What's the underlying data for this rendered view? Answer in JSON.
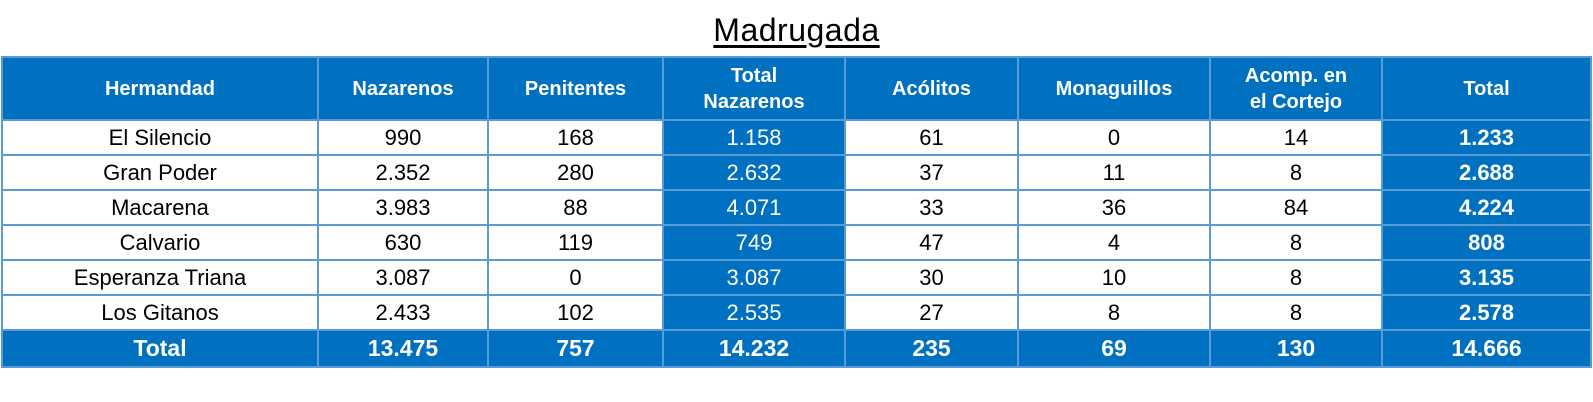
{
  "title": "Madrugada",
  "colors": {
    "fill_blue": "#0070C0",
    "grid_blue": "#5B9BD5",
    "text_on_blue": "#FFFFFF",
    "body_text": "#000000"
  },
  "chart_data": {
    "type": "table",
    "title": "Madrugada",
    "columns": [
      {
        "id": "hermandad",
        "label": "Hermandad"
      },
      {
        "id": "nazarenos",
        "label": "Nazarenos"
      },
      {
        "id": "penitentes",
        "label": "Penitentes"
      },
      {
        "id": "total-nazarenos",
        "label": "Total\nNazarenos"
      },
      {
        "id": "acolitos",
        "label": "Acólitos"
      },
      {
        "id": "monaguillos",
        "label": "Monaguillos"
      },
      {
        "id": "acomp-cortejo",
        "label": "Acomp. en\nel Cortejo"
      },
      {
        "id": "total",
        "label": "Total"
      }
    ],
    "rows": [
      {
        "cells": [
          "El Silencio",
          "990",
          "168",
          "1.158",
          "61",
          "0",
          "14",
          "1.233"
        ]
      },
      {
        "cells": [
          "Gran Poder",
          "2.352",
          "280",
          "2.632",
          "37",
          "11",
          "8",
          "2.688"
        ]
      },
      {
        "cells": [
          "Macarena",
          "3.983",
          "88",
          "4.071",
          "33",
          "36",
          "84",
          "4.224"
        ]
      },
      {
        "cells": [
          "Calvario",
          "630",
          "119",
          "749",
          "47",
          "4",
          "8",
          "808"
        ]
      },
      {
        "cells": [
          "Esperanza Triana",
          "3.087",
          "0",
          "3.087",
          "30",
          "10",
          "8",
          "3.135"
        ]
      },
      {
        "cells": [
          "Los Gitanos",
          "2.433",
          "102",
          "2.535",
          "27",
          "8",
          "8",
          "2.578"
        ]
      }
    ],
    "total_row": [
      "Total",
      "13.475",
      "757",
      "14.232",
      "235",
      "69",
      "130",
      "14.666"
    ]
  }
}
